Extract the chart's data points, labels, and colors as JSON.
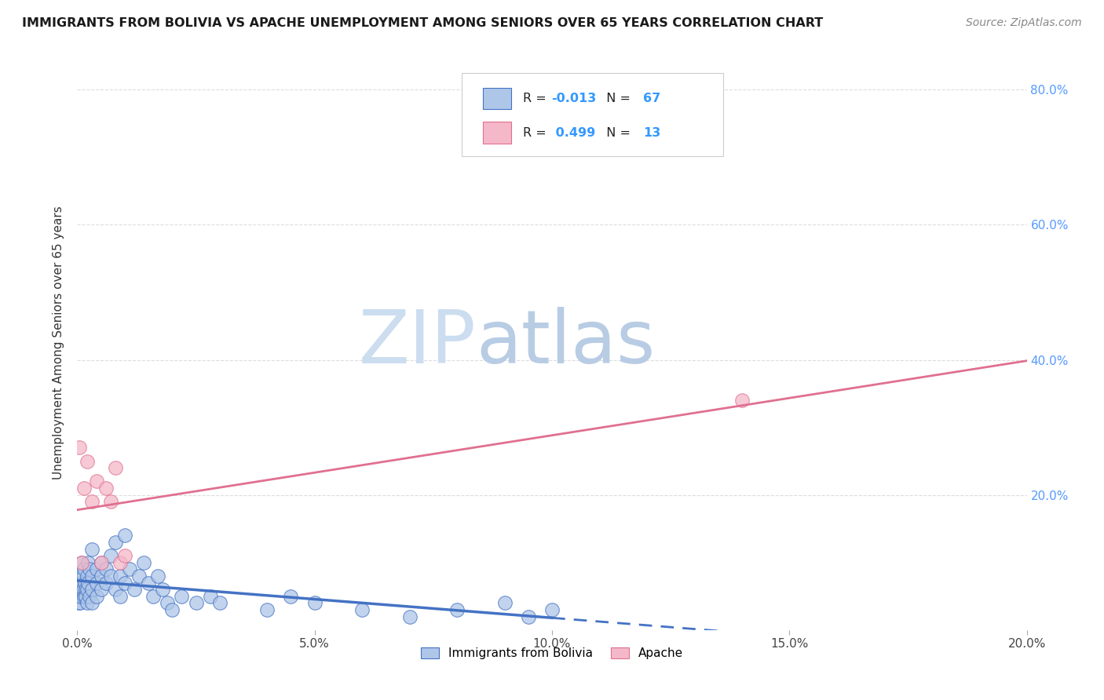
{
  "title": "IMMIGRANTS FROM BOLIVIA VS APACHE UNEMPLOYMENT AMONG SENIORS OVER 65 YEARS CORRELATION CHART",
  "source": "Source: ZipAtlas.com",
  "ylabel": "Unemployment Among Seniors over 65 years",
  "xlim": [
    0.0,
    0.2
  ],
  "ylim": [
    0.0,
    0.85
  ],
  "bolivia_R": -0.013,
  "bolivia_N": 67,
  "apache_R": 0.499,
  "apache_N": 13,
  "bolivia_color": "#aec6e8",
  "bolivia_edge_color": "#4472c4",
  "bolivia_line_color": "#4472c4",
  "apache_color": "#f4b8c8",
  "apache_edge_color": "#e07090",
  "apache_line_color": "#e07090",
  "bolivia_scatter_x": [
    0.0002,
    0.0003,
    0.0004,
    0.0005,
    0.0006,
    0.0007,
    0.0008,
    0.0009,
    0.001,
    0.001,
    0.0012,
    0.0013,
    0.0014,
    0.0015,
    0.0016,
    0.0017,
    0.0018,
    0.002,
    0.002,
    0.002,
    0.0022,
    0.0023,
    0.0025,
    0.0026,
    0.003,
    0.003,
    0.003,
    0.003,
    0.004,
    0.004,
    0.004,
    0.005,
    0.005,
    0.005,
    0.006,
    0.006,
    0.007,
    0.007,
    0.008,
    0.008,
    0.009,
    0.009,
    0.01,
    0.01,
    0.011,
    0.012,
    0.013,
    0.014,
    0.015,
    0.016,
    0.017,
    0.018,
    0.019,
    0.02,
    0.022,
    0.025,
    0.028,
    0.03,
    0.04,
    0.045,
    0.05,
    0.06,
    0.07,
    0.08,
    0.09,
    0.095,
    0.1
  ],
  "bolivia_scatter_y": [
    0.04,
    0.06,
    0.05,
    0.07,
    0.04,
    0.08,
    0.05,
    0.06,
    0.1,
    0.07,
    0.08,
    0.06,
    0.05,
    0.09,
    0.07,
    0.06,
    0.05,
    0.08,
    0.06,
    0.04,
    0.1,
    0.07,
    0.09,
    0.05,
    0.12,
    0.08,
    0.06,
    0.04,
    0.09,
    0.07,
    0.05,
    0.1,
    0.08,
    0.06,
    0.09,
    0.07,
    0.11,
    0.08,
    0.13,
    0.06,
    0.08,
    0.05,
    0.14,
    0.07,
    0.09,
    0.06,
    0.08,
    0.1,
    0.07,
    0.05,
    0.08,
    0.06,
    0.04,
    0.03,
    0.05,
    0.04,
    0.05,
    0.04,
    0.03,
    0.05,
    0.04,
    0.03,
    0.02,
    0.03,
    0.04,
    0.02,
    0.03
  ],
  "apache_scatter_x": [
    0.0005,
    0.001,
    0.0015,
    0.002,
    0.003,
    0.004,
    0.005,
    0.006,
    0.007,
    0.008,
    0.009,
    0.01,
    0.14
  ],
  "apache_scatter_y": [
    0.27,
    0.1,
    0.21,
    0.25,
    0.19,
    0.22,
    0.1,
    0.21,
    0.19,
    0.24,
    0.1,
    0.11,
    0.34
  ],
  "watermark_zip": "ZIP",
  "watermark_atlas": "atlas",
  "background_color": "#ffffff",
  "grid_color": "#dddddd",
  "right_tick_color": "#5599ff",
  "x_tick_labels": [
    "0.0%",
    "5.0%",
    "10.0%",
    "15.0%",
    "20.0%"
  ],
  "x_ticks": [
    0.0,
    0.05,
    0.1,
    0.15,
    0.2
  ],
  "y_ticks": [
    0.0,
    0.2,
    0.4,
    0.6,
    0.8
  ],
  "y_tick_labels_right": [
    "",
    "20.0%",
    "40.0%",
    "60.0%",
    "80.0%"
  ]
}
